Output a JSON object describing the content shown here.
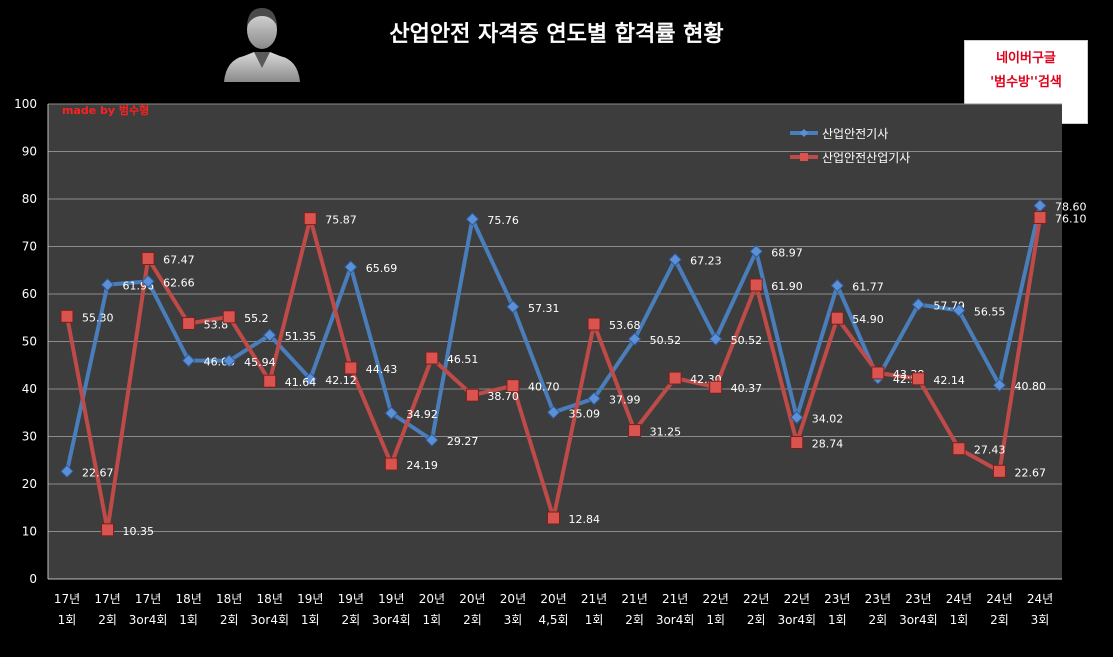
{
  "header": {
    "title": "산업안전 자격증 연도별 합격률 현황",
    "watermark": "made by 범수형"
  },
  "ad_box": {
    "line1": "네이버구글",
    "line2": "'범수방''검색"
  },
  "chart_data": {
    "type": "line",
    "title": "산업안전 자격증 연도별 합격률 현황",
    "xlabel": "",
    "ylabel": "",
    "ylim": [
      0,
      100
    ],
    "yticks": [
      0,
      10,
      20,
      30,
      40,
      50,
      60,
      70,
      80,
      90,
      100
    ],
    "grid": true,
    "legend_position": "top-right",
    "categories": [
      [
        "17년",
        "1회"
      ],
      [
        "17년",
        "2회"
      ],
      [
        "17년",
        "3or4회"
      ],
      [
        "18년",
        "1회"
      ],
      [
        "18년",
        "2회"
      ],
      [
        "18년",
        "3or4회"
      ],
      [
        "19년",
        "1회"
      ],
      [
        "19년",
        "2회"
      ],
      [
        "19년",
        "3or4회"
      ],
      [
        "20년",
        "1회"
      ],
      [
        "20년",
        "2회"
      ],
      [
        "20년",
        "3회"
      ],
      [
        "20년",
        "4,5회"
      ],
      [
        "21년",
        "1회"
      ],
      [
        "21년",
        "2회"
      ],
      [
        "21년",
        "3or4회"
      ],
      [
        "22년",
        "1회"
      ],
      [
        "22년",
        "2회"
      ],
      [
        "22년",
        "3or4회"
      ],
      [
        "23년",
        "1회"
      ],
      [
        "23년",
        "2회"
      ],
      [
        "23년",
        "3or4회"
      ],
      [
        "24년",
        "1회"
      ],
      [
        "24년",
        "2회"
      ],
      [
        "24년",
        "3회"
      ]
    ],
    "series": [
      {
        "name": "산업안전기사",
        "color": "#4a7ebb",
        "marker": "diamond",
        "values": [
          22.67,
          61.96,
          62.66,
          46.0,
          45.94,
          51.35,
          42.12,
          65.69,
          34.92,
          29.27,
          75.76,
          57.31,
          35.09,
          37.99,
          50.52,
          67.23,
          50.52,
          68.97,
          34.02,
          61.77,
          42.3,
          57.79,
          56.55,
          40.8,
          78.6
        ],
        "labels": [
          "22.67",
          "61.96",
          "62.66",
          "46.00",
          "45.94",
          "51.35",
          "42.12",
          "65.69",
          "34.92",
          "29.27",
          "75.76",
          "57.31",
          "35.09",
          "37.99",
          "50.52",
          "67.23",
          "50.52",
          "68.97",
          "34.02",
          "61.77",
          "42.30",
          "57.79",
          "56.55",
          "40.80",
          "78.60"
        ]
      },
      {
        "name": "산업안전산업기사",
        "color": "#be4b48",
        "marker": "square",
        "values": [
          55.3,
          10.35,
          67.47,
          53.8,
          55.2,
          41.64,
          75.87,
          44.43,
          24.19,
          46.51,
          38.7,
          40.7,
          12.84,
          53.68,
          31.25,
          42.3,
          40.37,
          61.9,
          28.74,
          54.9,
          43.38,
          42.14,
          27.43,
          22.67,
          76.1
        ],
        "labels": [
          "55.30",
          "10.35",
          "67.47",
          "53.8",
          "55.2",
          "41.64",
          "75.87",
          "44.43",
          "24.19",
          "46.51",
          "38.70",
          "40.70",
          "12.84",
          "53.68",
          "31.25",
          "42.30",
          "40.37",
          "61.90",
          "28.74",
          "54.90",
          "43.38",
          "42.14",
          "27.43",
          "22.67",
          "76.10"
        ]
      }
    ]
  }
}
